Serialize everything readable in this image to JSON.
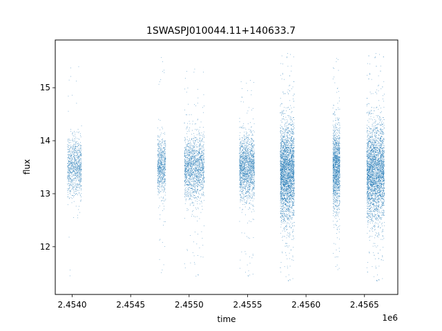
{
  "chart_data": {
    "type": "scatter",
    "title": "1SWASPJ010044.11+140633.7",
    "xlabel": "time",
    "ylabel": "flux",
    "x_offset_label": "1e6",
    "xlim": [
      2453855,
      2456785
    ],
    "ylim": [
      11.1,
      15.9
    ],
    "x_ticks": [
      2454000,
      2454500,
      2455000,
      2455500,
      2456000,
      2456500
    ],
    "x_tick_labels": [
      "2.4540",
      "2.4545",
      "2.4550",
      "2.4555",
      "2.4560",
      "2.4565"
    ],
    "y_ticks": [
      12,
      13,
      14,
      15
    ],
    "y_tick_labels": [
      "12",
      "13",
      "14",
      "15"
    ],
    "grid": false,
    "marker_color": "#1f77b4",
    "series": [
      {
        "clusters": [
          {
            "x_start": 2453960,
            "x_end": 2454080,
            "center": 13.5,
            "spread": 0.28,
            "count": 900,
            "y_min": 11.3,
            "y_max": 15.5
          },
          {
            "x_start": 2454730,
            "x_end": 2454800,
            "center": 13.5,
            "spread": 0.26,
            "count": 700,
            "y_min": 11.5,
            "y_max": 15.7
          },
          {
            "x_start": 2454960,
            "x_end": 2455130,
            "center": 13.5,
            "spread": 0.3,
            "count": 1600,
            "y_min": 11.4,
            "y_max": 15.4
          },
          {
            "x_start": 2455430,
            "x_end": 2455560,
            "center": 13.5,
            "spread": 0.3,
            "count": 1600,
            "y_min": 11.4,
            "y_max": 15.2
          },
          {
            "x_start": 2455780,
            "x_end": 2455900,
            "center": 13.4,
            "spread": 0.45,
            "count": 3200,
            "y_min": 11.3,
            "y_max": 15.7
          },
          {
            "x_start": 2456230,
            "x_end": 2456290,
            "center": 13.5,
            "spread": 0.4,
            "count": 1400,
            "y_min": 11.5,
            "y_max": 15.6
          },
          {
            "x_start": 2456520,
            "x_end": 2456670,
            "center": 13.4,
            "spread": 0.45,
            "count": 3400,
            "y_min": 11.3,
            "y_max": 15.7
          }
        ]
      }
    ]
  }
}
